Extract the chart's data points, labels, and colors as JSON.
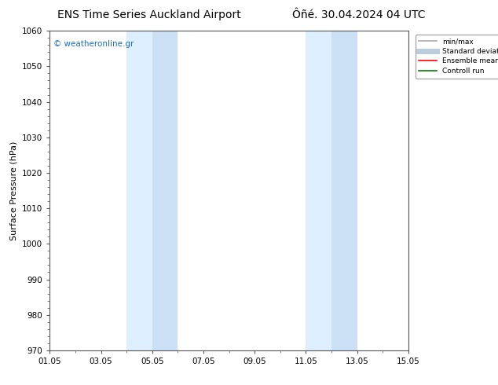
{
  "title_left": "ENS Time Series Auckland Airport",
  "title_right": "Ôñé. 30.04.2024 04 UTC",
  "ylabel": "Surface Pressure (hPa)",
  "ylim": [
    970,
    1060
  ],
  "yticks": [
    970,
    980,
    990,
    1000,
    1010,
    1020,
    1030,
    1040,
    1050,
    1060
  ],
  "xtick_labels": [
    "01.05",
    "03.05",
    "05.05",
    "07.05",
    "09.05",
    "11.05",
    "13.05",
    "15.05"
  ],
  "xtick_positions": [
    0,
    2,
    4,
    6,
    8,
    10,
    12,
    14
  ],
  "xlim": [
    0,
    14
  ],
  "shaded_bands": [
    {
      "x_start": 3.0,
      "x_end": 4.0
    },
    {
      "x_start": 4.0,
      "x_end": 5.0
    },
    {
      "x_start": 10.0,
      "x_end": 11.0
    },
    {
      "x_start": 11.0,
      "x_end": 12.0
    }
  ],
  "band_colors": [
    "#ddeeff",
    "#cce0f5",
    "#ddeeff",
    "#cce0f5"
  ],
  "background_color": "#ffffff",
  "watermark_text": "© weatheronline.gr",
  "watermark_color": "#1a6fc4",
  "legend_items": [
    {
      "label": "min/max",
      "color": "#aaaaaa",
      "lw": 1.2
    },
    {
      "label": "Standard deviation",
      "color": "#bbccdd",
      "lw": 5
    },
    {
      "label": "Ensemble mean run",
      "color": "#ff0000",
      "lw": 1.2
    },
    {
      "label": "Controll run",
      "color": "#008000",
      "lw": 1.2
    }
  ],
  "title_fontsize": 10,
  "label_fontsize": 8,
  "tick_fontsize": 7.5
}
